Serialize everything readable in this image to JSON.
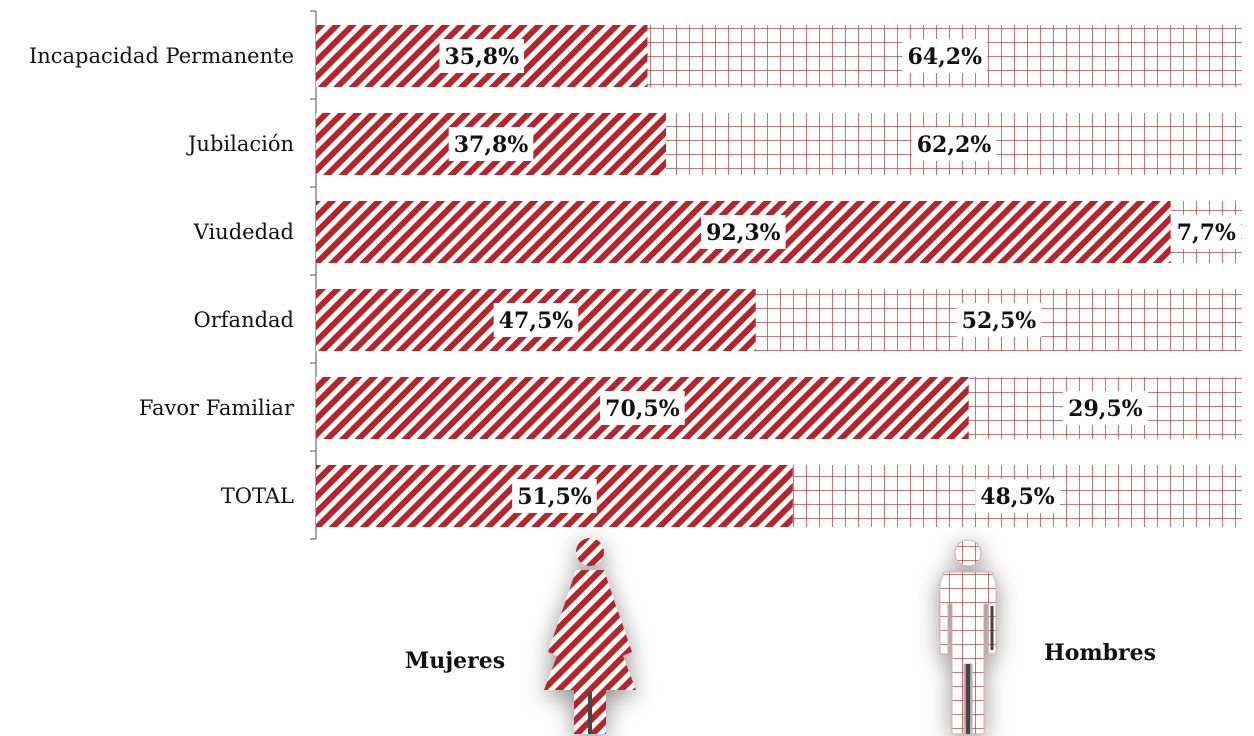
{
  "chart_data": {
    "type": "bar",
    "orientation": "horizontal",
    "stacked": "100%",
    "categories": [
      "Incapacidad Permanente",
      "Jubilación",
      "Viudedad",
      "Orfandad",
      "Favor Familiar",
      "TOTAL"
    ],
    "series": [
      {
        "name": "Mujeres",
        "values": [
          35.8,
          37.8,
          92.3,
          47.5,
          70.5,
          51.5
        ],
        "labels": [
          "35,8%",
          "37,8%",
          "92,3%",
          "47,5%",
          "70,5%",
          "51,5%"
        ],
        "pattern": "diagonal-stripes",
        "color": "#b5252c"
      },
      {
        "name": "Hombres",
        "values": [
          64.2,
          62.2,
          7.7,
          52.5,
          29.5,
          48.5
        ],
        "labels": [
          "64,2%",
          "62,2%",
          "7,7%",
          "52,5%",
          "29,5%",
          "48,5%"
        ],
        "pattern": "grid",
        "color": "#b5252c"
      }
    ],
    "xlim": [
      0,
      100
    ],
    "grid": false,
    "legend": {
      "placement": "bottom",
      "icons": [
        "woman-figure-icon",
        "man-figure-icon"
      ]
    }
  },
  "colors": {
    "accent": "#b5252c",
    "axis": "#888888",
    "text": "#111111"
  }
}
